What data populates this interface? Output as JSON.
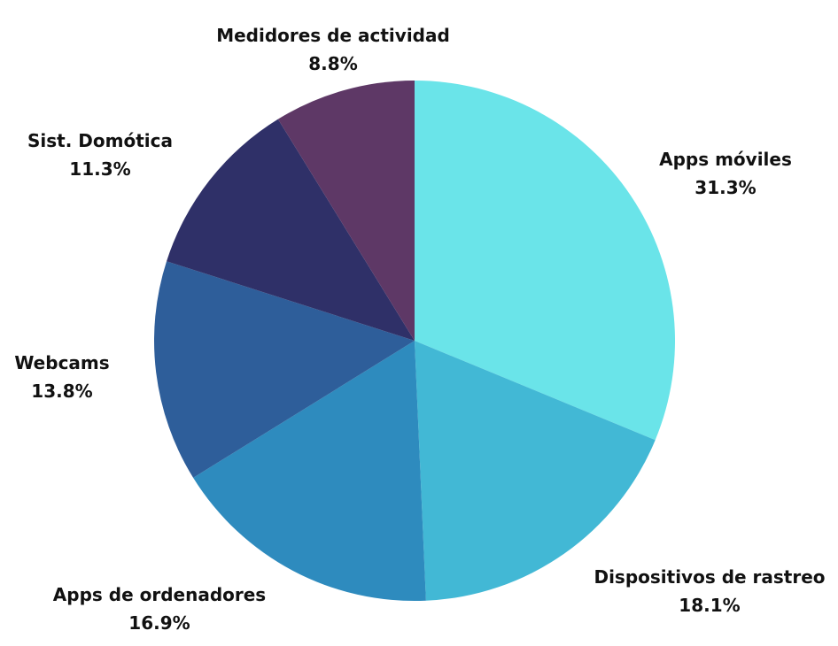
{
  "chart_data": {
    "type": "pie",
    "start_angle_deg": 0,
    "direction": "clockwise",
    "slices": [
      {
        "label": "Apps móviles",
        "value": 31.3,
        "value_label": "31.3%",
        "color": "#6AE4E9"
      },
      {
        "label": "Dispositivos de rastreo",
        "value": 18.1,
        "value_label": "18.1%",
        "color": "#42B8D5"
      },
      {
        "label": "Apps de ordenadores",
        "value": 16.9,
        "value_label": "16.9%",
        "color": "#2E8BBE"
      },
      {
        "label": "Webcams",
        "value": 13.8,
        "value_label": "13.8%",
        "color": "#2E5E9A"
      },
      {
        "label": "Sist. Domótica",
        "value": 11.3,
        "value_label": "11.3%",
        "color": "#2F3068"
      },
      {
        "label": "Medidores de actividad",
        "value": 8.8,
        "value_label": "8.8%",
        "color": "#5E3866"
      }
    ]
  }
}
